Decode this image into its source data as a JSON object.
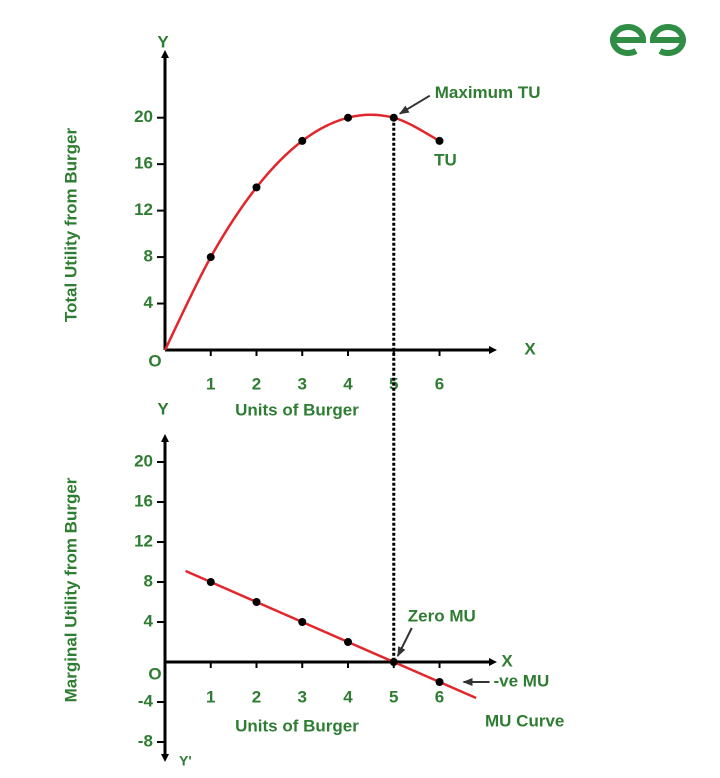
{
  "chart_data": [
    {
      "type": "line",
      "y_label": "Total Utility from Burger",
      "x_label": "Units of Burger",
      "x_axis_name": "X",
      "y_axis_name": "Y",
      "origin_label": "O",
      "x": [
        1,
        2,
        3,
        4,
        5,
        6
      ],
      "series": [
        {
          "name": "TU",
          "color": "#e3262b",
          "values": [
            8,
            14,
            18,
            20,
            20,
            18
          ]
        }
      ],
      "xlim": [
        0,
        7.3
      ],
      "ylim": [
        0,
        26
      ],
      "xticks": [
        1,
        2,
        3,
        4,
        5,
        6
      ],
      "yticks": [
        4,
        8,
        12,
        16,
        20
      ],
      "annotations": [
        "Maximum TU"
      ]
    },
    {
      "type": "line",
      "y_label": "Marginal Utility from Burger",
      "x_label": "Units of Burger",
      "x_axis_name": "X",
      "y_axis_name": "Y",
      "y_neg_axis_name": "Y'",
      "origin_label": "O",
      "x": [
        1,
        2,
        3,
        4,
        5,
        6
      ],
      "series": [
        {
          "name": "MU Curve",
          "color": "#e3262b",
          "values": [
            8,
            6,
            4,
            2,
            0,
            -2
          ]
        }
      ],
      "xlim": [
        0,
        7.3
      ],
      "ylim": [
        -10,
        23
      ],
      "xticks": [
        1,
        2,
        3,
        4,
        5,
        6
      ],
      "yticks": [
        -8,
        -4,
        4,
        8,
        12,
        16,
        20
      ],
      "annotations": [
        "Zero MU",
        "-ve MU"
      ]
    }
  ]
}
